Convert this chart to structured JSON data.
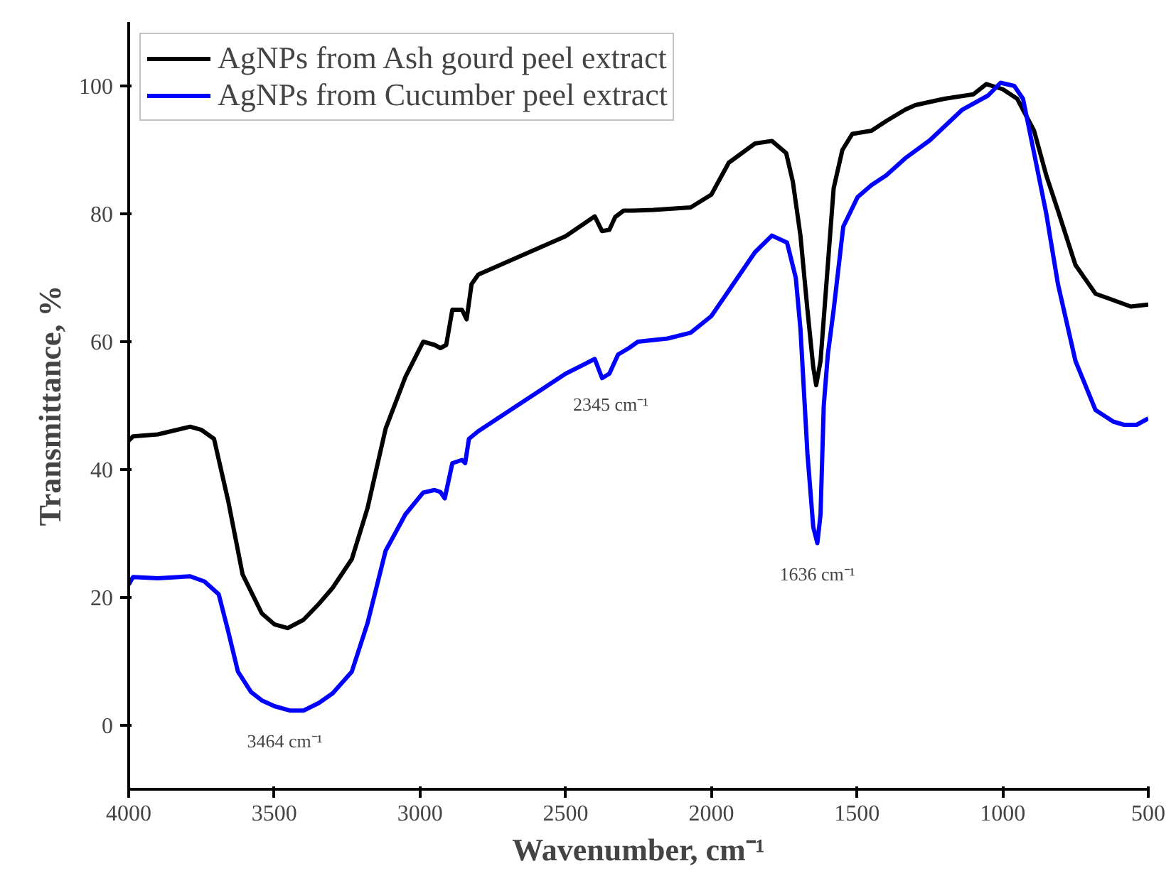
{
  "chart_data": {
    "type": "line",
    "xlabel": "Wavenumber, cm⁻¹",
    "ylabel": "Transmittance, %",
    "xlim": [
      4000,
      500
    ],
    "ylim": [
      -10,
      110
    ],
    "xticks": [
      4000,
      3500,
      3000,
      2500,
      2000,
      1500,
      1000,
      500
    ],
    "yticks": [
      0,
      20,
      40,
      60,
      80,
      100
    ],
    "grid": false,
    "legend": "top left",
    "marker": "none",
    "line_style": "solid",
    "annotations": [
      {
        "text": "3464 cm⁻¹",
        "x": 3464,
        "y": 2.3
      },
      {
        "text": "2345 cm⁻¹",
        "x": 2345,
        "y": 55
      },
      {
        "text": "1636 cm⁻¹",
        "x": 1636,
        "y": 28.5
      }
    ],
    "series": [
      {
        "name": "AgNPs from Ash gourd peel extract",
        "color": "#000000",
        "x": [
          4000,
          3985,
          3900,
          3789,
          3750,
          3707,
          3658,
          3609,
          3543,
          3500,
          3454,
          3400,
          3347,
          3300,
          3234,
          3180,
          3118,
          3050,
          2989,
          2950,
          2930,
          2910,
          2889,
          2856,
          2840,
          2823,
          2800,
          2700,
          2600,
          2500,
          2400,
          2375,
          2350,
          2330,
          2301,
          2267,
          2200,
          2071,
          2000,
          1940,
          1850,
          1792,
          1743,
          1720,
          1694,
          1670,
          1650,
          1640,
          1625,
          1610,
          1580,
          1550,
          1516,
          1450,
          1400,
          1334,
          1300,
          1200,
          1100,
          1056,
          1000,
          950,
          892,
          850,
          810,
          750,
          681,
          620,
          560,
          500
        ],
        "values": [
          44.5,
          45.2,
          45.5,
          46.7,
          46.2,
          44.8,
          35,
          23.6,
          17.5,
          15.8,
          15.2,
          16.5,
          19,
          21.5,
          26,
          34,
          46.4,
          54.5,
          60,
          59.5,
          59,
          59.5,
          65,
          65,
          63.5,
          69,
          70.5,
          72.5,
          74.5,
          76.5,
          79.6,
          77.3,
          77.5,
          79.5,
          80.5,
          80.5,
          80.6,
          81,
          83,
          88,
          91,
          91.4,
          89.5,
          85,
          76.6,
          65,
          56,
          53.2,
          57,
          66,
          84,
          90,
          92.5,
          93,
          94.5,
          96.3,
          97,
          98,
          98.7,
          100.3,
          99.5,
          98,
          93,
          86,
          80.5,
          72,
          67.5,
          66.5,
          65.5,
          65.8
        ]
      },
      {
        "name": "AgNPs from Cucumber peel extract",
        "color": "#0000ff",
        "x": [
          4000,
          3985,
          3900,
          3789,
          3740,
          3691,
          3660,
          3625,
          3580,
          3543,
          3500,
          3445,
          3400,
          3347,
          3300,
          3234,
          3180,
          3118,
          3050,
          2989,
          2950,
          2930,
          2915,
          2889,
          2856,
          2845,
          2832,
          2800,
          2700,
          2600,
          2500,
          2400,
          2375,
          2350,
          2320,
          2283,
          2252,
          2150,
          2071,
          2000,
          1940,
          1850,
          1792,
          1740,
          1710,
          1694,
          1670,
          1650,
          1636,
          1625,
          1614,
          1600,
          1580,
          1547,
          1498,
          1450,
          1400,
          1334,
          1250,
          1138,
          1050,
          1007,
          960,
          930,
          892,
          850,
          810,
          750,
          681,
          620,
          583,
          540,
          500
        ],
        "values": [
          22,
          23.2,
          23,
          23.3,
          22.5,
          20.5,
          15,
          8.4,
          5.2,
          3.9,
          3,
          2.3,
          2.3,
          3.5,
          5,
          8.4,
          16,
          27.3,
          33,
          36.4,
          36.8,
          36.5,
          35.5,
          41,
          41.5,
          41,
          44.8,
          46,
          49,
          52,
          55,
          57.3,
          54.3,
          55,
          58,
          59,
          60,
          60.5,
          61.4,
          64,
          68,
          74,
          76.6,
          75.5,
          70,
          62,
          42.5,
          31,
          28.5,
          33,
          50,
          58,
          65,
          78,
          82.6,
          84.5,
          86,
          88.7,
          91.5,
          96.3,
          98.5,
          100.5,
          100,
          98,
          89.5,
          80,
          69,
          57,
          49.3,
          47.5,
          47,
          47,
          48
        ]
      }
    ]
  }
}
